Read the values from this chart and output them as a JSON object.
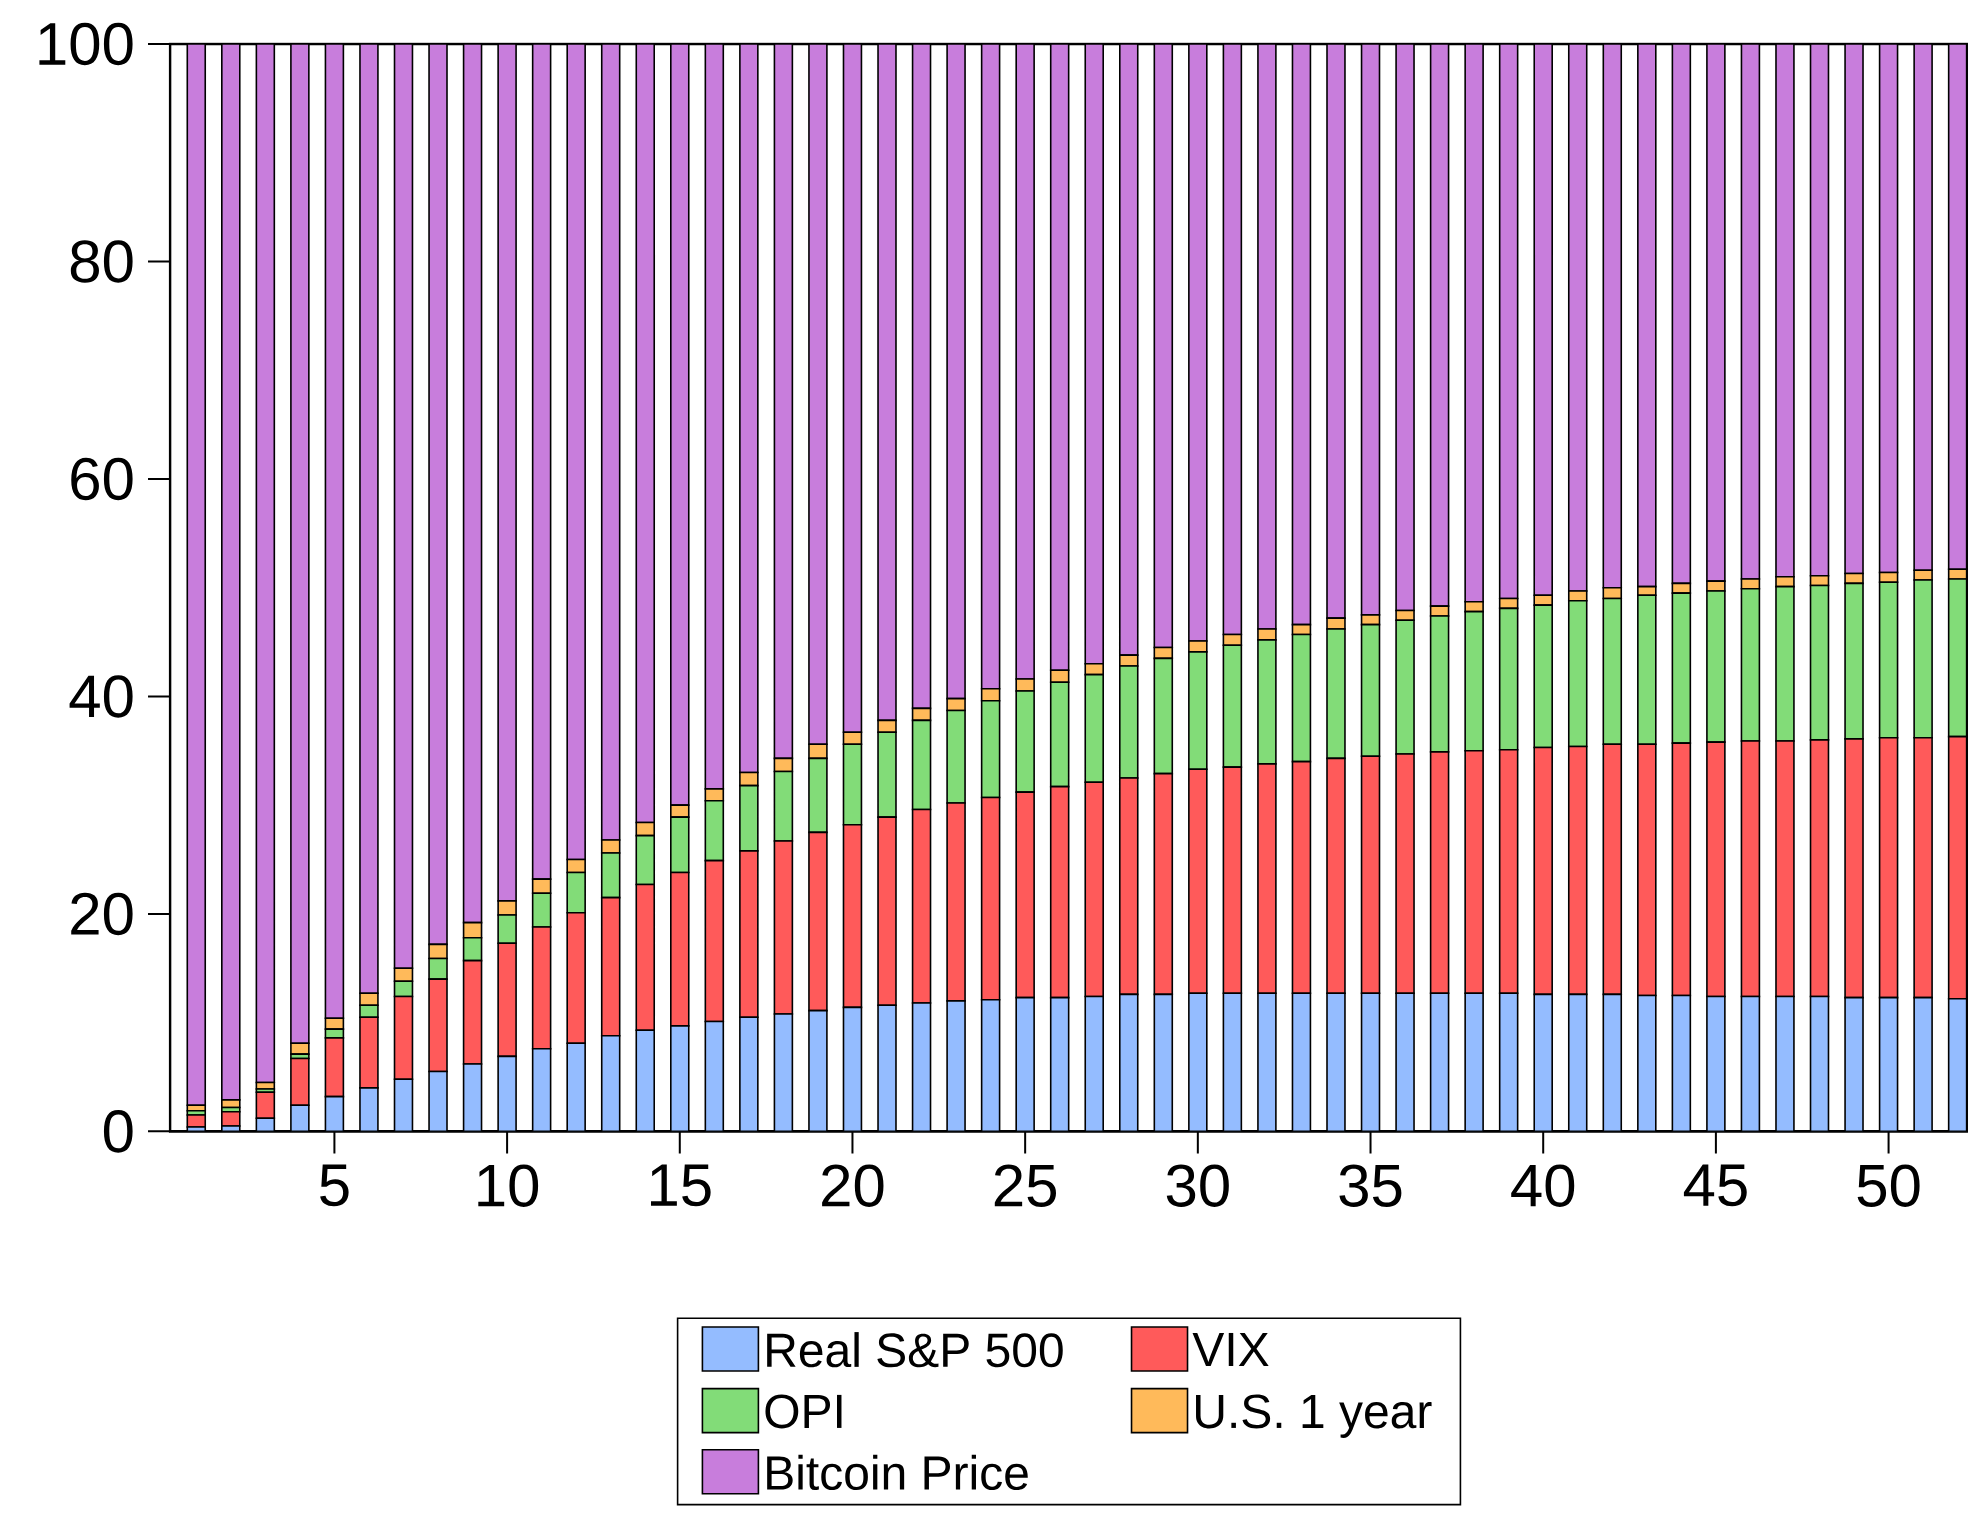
{
  "chart_data": {
    "type": "bar",
    "stacked": true,
    "legend": "bottom",
    "x": [
      1,
      2,
      3,
      4,
      5,
      6,
      7,
      8,
      9,
      10,
      11,
      12,
      13,
      14,
      15,
      16,
      17,
      18,
      19,
      20,
      21,
      22,
      23,
      24,
      25,
      26,
      27,
      28,
      29,
      30,
      31,
      32,
      33,
      34,
      35,
      36,
      37,
      38,
      39,
      40,
      41,
      42,
      43,
      44,
      45,
      46,
      47,
      48,
      49,
      50,
      51,
      52
    ],
    "xlim": [
      0.24,
      52.3
    ],
    "ylim": [
      0,
      100
    ],
    "xticks": [
      5,
      10,
      15,
      20,
      25,
      30,
      35,
      40,
      45,
      50
    ],
    "yticks": [
      0,
      20,
      40,
      60,
      80,
      100
    ],
    "series": [
      {
        "name": "Real S&P 500",
        "color": "#94bcff",
        "values": [
          0.4,
          0.5,
          1.2,
          2.4,
          3.2,
          4.0,
          4.8,
          5.5,
          6.2,
          6.9,
          7.6,
          8.1,
          8.8,
          9.3,
          9.7,
          10.1,
          10.5,
          10.8,
          11.1,
          11.4,
          11.6,
          11.8,
          12.0,
          12.1,
          12.3,
          12.3,
          12.4,
          12.6,
          12.6,
          12.7,
          12.7,
          12.7,
          12.7,
          12.7,
          12.7,
          12.7,
          12.7,
          12.7,
          12.7,
          12.6,
          12.6,
          12.6,
          12.5,
          12.5,
          12.4,
          12.4,
          12.4,
          12.4,
          12.3,
          12.3,
          12.3,
          12.2
        ]
      },
      {
        "name": "VIX",
        "color": "#ff5a5a",
        "values": [
          1.1,
          1.3,
          2.4,
          4.3,
          5.4,
          6.5,
          7.6,
          8.5,
          9.5,
          10.4,
          11.2,
          12.0,
          12.7,
          13.4,
          14.1,
          14.8,
          15.3,
          15.9,
          16.4,
          16.8,
          17.3,
          17.8,
          18.2,
          18.6,
          18.9,
          19.4,
          19.7,
          19.9,
          20.3,
          20.6,
          20.8,
          21.1,
          21.3,
          21.6,
          21.8,
          22.0,
          22.2,
          22.3,
          22.4,
          22.7,
          22.8,
          23.0,
          23.1,
          23.2,
          23.4,
          23.5,
          23.5,
          23.6,
          23.8,
          23.9,
          23.9,
          24.1
        ]
      },
      {
        "name": "OPI",
        "color": "#82dc78",
        "values": [
          0.4,
          0.4,
          0.3,
          0.4,
          0.8,
          1.1,
          1.4,
          1.9,
          2.1,
          2.6,
          3.1,
          3.7,
          4.1,
          4.5,
          5.1,
          5.5,
          6.0,
          6.4,
          6.8,
          7.4,
          7.8,
          8.2,
          8.5,
          8.9,
          9.3,
          9.6,
          9.9,
          10.3,
          10.6,
          10.8,
          11.2,
          11.4,
          11.7,
          11.9,
          12.1,
          12.3,
          12.5,
          12.8,
          13.0,
          13.1,
          13.4,
          13.4,
          13.7,
          13.8,
          13.9,
          14.0,
          14.2,
          14.2,
          14.3,
          14.3,
          14.5,
          14.5
        ]
      },
      {
        "name": "U.S. 1 year",
        "color": "#ffba5a",
        "values": [
          0.5,
          0.7,
          0.6,
          1.0,
          1.0,
          1.1,
          1.2,
          1.3,
          1.4,
          1.3,
          1.3,
          1.2,
          1.2,
          1.2,
          1.1,
          1.1,
          1.2,
          1.2,
          1.3,
          1.1,
          1.1,
          1.1,
          1.1,
          1.1,
          1.1,
          1.1,
          1.0,
          1.0,
          1.0,
          1.0,
          1.0,
          1.0,
          0.9,
          1.0,
          0.9,
          0.9,
          0.9,
          0.9,
          0.9,
          0.9,
          0.9,
          1.0,
          0.8,
          0.9,
          0.9,
          0.9,
          0.9,
          0.9,
          0.9,
          0.9,
          0.9,
          0.9
        ]
      },
      {
        "name": "Bitcoin Price",
        "color": "#c87ddc",
        "values": [
          97.6,
          97.1,
          95.5,
          91.9,
          89.6,
          87.3,
          85.0,
          82.8,
          80.8,
          78.8,
          76.8,
          75.0,
          73.2,
          71.6,
          70.0,
          68.5,
          67.0,
          65.7,
          64.4,
          63.3,
          62.2,
          61.1,
          60.2,
          59.3,
          58.4,
          57.6,
          57.0,
          56.2,
          55.5,
          54.9,
          54.3,
          53.8,
          53.4,
          52.8,
          52.5,
          52.1,
          51.7,
          51.3,
          51.0,
          50.7,
          50.3,
          50.0,
          49.9,
          49.6,
          49.4,
          49.2,
          49.0,
          48.9,
          48.7,
          48.6,
          48.4,
          48.3
        ]
      }
    ]
  }
}
